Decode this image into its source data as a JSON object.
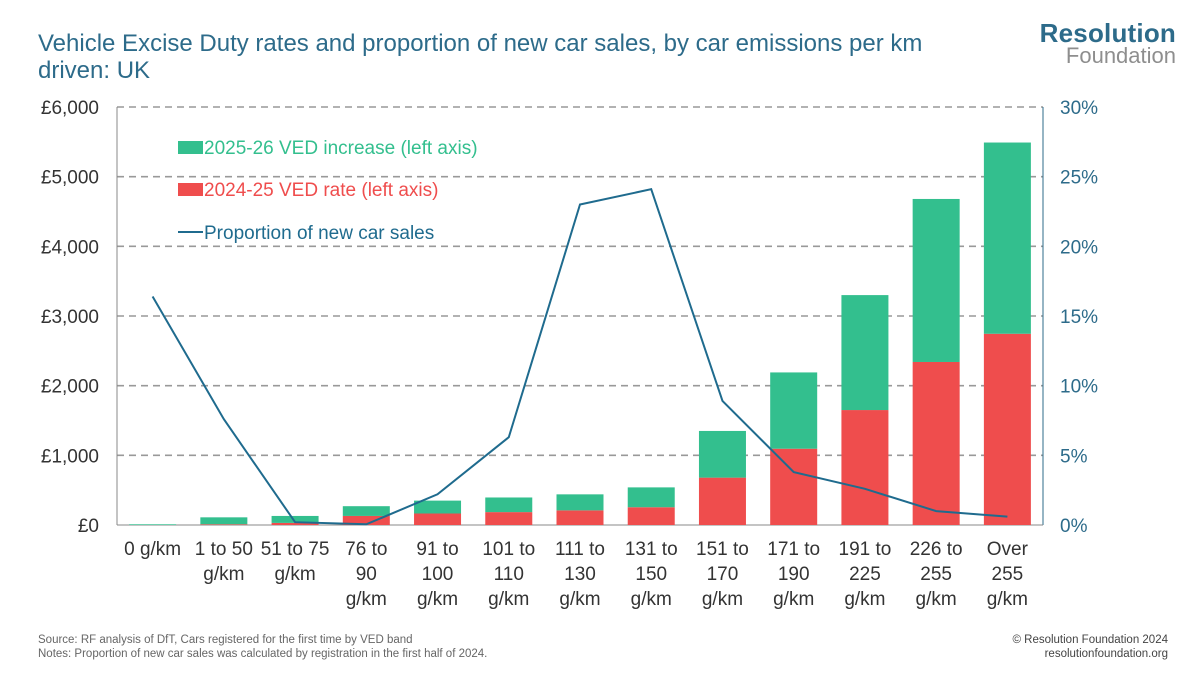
{
  "title": "Vehicle Excise Duty rates and proportion of new car sales, by car emissions per km driven: UK",
  "logo": {
    "line1": "Resolution",
    "line2": "Foundation"
  },
  "footer": {
    "source": "Source: RF analysis of DfT, Cars registered for the first time by VED band",
    "notes": "Notes: Proportion of new car sales was calculated by registration in the first half of 2024.",
    "copyright": "© Resolution Foundation 2024",
    "url": "resolutionfoundation.org"
  },
  "colors": {
    "increase": "#33bf8e",
    "rate": "#ef4d4d",
    "line": "#1f6b8e",
    "text": "#2d6b8a",
    "grid": "#999999"
  },
  "chart_data": {
    "type": "bar",
    "stacked": true,
    "categories": [
      [
        "0 g/km"
      ],
      [
        "1 to 50",
        "g/km"
      ],
      [
        "51 to 75",
        "g/km"
      ],
      [
        "76 to",
        "90",
        "g/km"
      ],
      [
        "91 to",
        "100",
        "g/km"
      ],
      [
        "101 to",
        "110",
        "g/km"
      ],
      [
        "111 to",
        "130",
        "g/km"
      ],
      [
        "131 to",
        "150",
        "g/km"
      ],
      [
        "151 to",
        "170",
        "g/km"
      ],
      [
        "171 to",
        "190",
        "g/km"
      ],
      [
        "191 to",
        "225",
        "g/km"
      ],
      [
        "226 to",
        "255",
        "g/km"
      ],
      [
        "Over",
        "255",
        "g/km"
      ]
    ],
    "series": [
      {
        "name": "2024-25 VED rate (left axis)",
        "axis": "left",
        "kind": "bar",
        "values": [
          0,
          10,
          30,
          130,
          165,
          185,
          210,
          255,
          680,
          1095,
          1650,
          2340,
          2745
        ]
      },
      {
        "name": "2025-26 VED increase (left axis)",
        "axis": "left",
        "kind": "bar",
        "values": [
          10,
          100,
          100,
          140,
          185,
          210,
          230,
          285,
          670,
          1095,
          1650,
          2340,
          2745
        ]
      },
      {
        "name": "Proportion of new car sales",
        "axis": "right",
        "kind": "line",
        "values": [
          16.4,
          7.6,
          0.2,
          0.05,
          2.2,
          6.3,
          23.0,
          24.1,
          8.9,
          3.8,
          2.6,
          1.0,
          0.6
        ]
      }
    ],
    "legend_order": [
      1,
      0,
      2
    ],
    "y_left": {
      "min": 0,
      "max": 6000,
      "ticks": [
        "£0",
        "£1,000",
        "£2,000",
        "£3,000",
        "£4,000",
        "£5,000",
        "£6,000"
      ]
    },
    "y_right": {
      "min": 0,
      "max": 30,
      "ticks": [
        "0%",
        "5%",
        "10%",
        "15%",
        "20%",
        "25%",
        "30%"
      ]
    },
    "grid": true
  }
}
